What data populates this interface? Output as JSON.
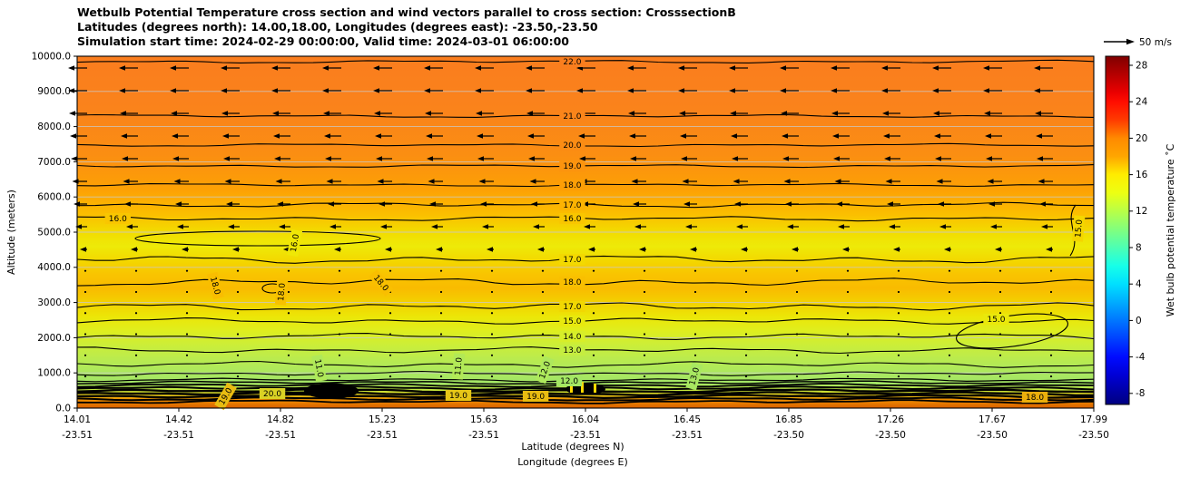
{
  "figure": {
    "title_lines": [
      "Wetbulb Potential Temperature cross section and wind vectors parallel to cross section: CrosssectionB",
      "Latitudes (degrees north): 14.00,18.00, Longitudes (degrees east): -23.50,-23.50",
      "Simulation start time: 2024-02-29 00:00:00, Valid time: 2024-03-01 06:00:00"
    ]
  },
  "chart_data": {
    "type": "filled-contour-cross-section",
    "title": "Wetbulb Potential Temperature cross section and wind vectors parallel to cross section: CrosssectionB",
    "info_lines": [
      "Latitudes (degrees north): 14.00,18.00, Longitudes (degrees east): -23.50,-23.50",
      "Simulation start time: 2024-02-29 00:00:00, Valid time: 2024-03-01 06:00:00"
    ],
    "x_axis": {
      "label_lat": "Latitude (degrees N)",
      "label_lon": "Longitude (degrees E)",
      "lat_ticks": [
        "14.01",
        "14.42",
        "14.82",
        "15.23",
        "15.63",
        "16.04",
        "16.45",
        "16.85",
        "17.26",
        "17.67",
        "17.99"
      ],
      "lon_ticks": [
        "-23.51",
        "-23.51",
        "-23.51",
        "-23.51",
        "-23.51",
        "-23.51",
        "-23.51",
        "-23.50",
        "-23.50",
        "-23.50",
        "-23.50"
      ]
    },
    "y_axis": {
      "label": "Altitude (meters)",
      "ticks": [
        "10000.0",
        "9000.0",
        "8000.0",
        "7000.0",
        "6000.0",
        "5000.0",
        "4000.0",
        "3000.0",
        "2000.0",
        "1000.0",
        "0.0"
      ],
      "range_m": [
        0,
        10000
      ]
    },
    "colorbar": {
      "label": "Wet bulb potential temperature ˚C",
      "ticks": [
        "28",
        "24",
        "20",
        "16",
        "12",
        "8",
        "4",
        "0",
        "-4",
        "-8"
      ],
      "colormap": "jet",
      "range": [
        -9,
        29
      ]
    },
    "wind": {
      "key_label": "50 m/s",
      "direction": "toward decreasing latitude (leftward arrows)",
      "arrow_rows": [
        {
          "altitude_m": 9665,
          "rel": 0.42
        },
        {
          "altitude_m": 9021,
          "rel": 0.42
        },
        {
          "altitude_m": 8376,
          "rel": 0.4
        },
        {
          "altitude_m": 7732,
          "rel": 0.38
        },
        {
          "altitude_m": 7088,
          "rel": 0.36
        },
        {
          "altitude_m": 6443,
          "rel": 0.33
        },
        {
          "altitude_m": 5799,
          "rel": 0.3
        },
        {
          "altitude_m": 5155,
          "rel": 0.26
        },
        {
          "altitude_m": 4510,
          "rel": 0.16
        }
      ],
      "dot_rows_altitude_m": [
        3900,
        3300,
        2700,
        2100,
        1500,
        900
      ]
    },
    "contour_unit": "degC",
    "contours": [
      {
        "level": "22.0",
        "altitude_m": 9845,
        "labels": [
          {
            "xf": 0.487
          }
        ]
      },
      {
        "level": "21.0",
        "altitude_m": 8299,
        "labels": [
          {
            "xf": 0.487
          }
        ]
      },
      {
        "level": "20.0",
        "altitude_m": 7474,
        "labels": [
          {
            "xf": 0.487
          }
        ]
      },
      {
        "level": "19.0",
        "altitude_m": 6881,
        "labels": [
          {
            "xf": 0.487
          }
        ]
      },
      {
        "level": "18.0",
        "altitude_m": 6340,
        "labels": [
          {
            "xf": 0.487
          }
        ]
      },
      {
        "level": "17.0",
        "altitude_m": 5773,
        "labels": [
          {
            "xf": 0.487
          }
        ]
      },
      {
        "level": "16.0",
        "altitude_m": 5387,
        "labels": [
          {
            "xf": 0.487
          },
          {
            "xf": 0.04
          },
          {
            "xf": 0.214,
            "rot": -80,
            "altitude_m": 4690
          }
        ]
      },
      {
        "level": "15.0",
        "altitude_m": 5103,
        "segment": "right-edge",
        "labels": [
          {
            "xf": 0.985,
            "rot": -85
          }
        ]
      },
      {
        "level": "17.0",
        "altitude_m": 4227,
        "labels": [
          {
            "xf": 0.487
          }
        ]
      },
      {
        "level": "18.0",
        "altitude_m": 3582,
        "labels": [
          {
            "xf": 0.487
          },
          {
            "xf": 0.136,
            "rot": 75,
            "altitude_m": 3479
          },
          {
            "xf": 0.201,
            "rot": -85,
            "altitude_m": 3299
          },
          {
            "xf": 0.299,
            "rot": 50,
            "altitude_m": 3556
          }
        ]
      },
      {
        "level": "17.0",
        "altitude_m": 2887,
        "labels": [
          {
            "xf": 0.487
          }
        ]
      },
      {
        "level": "15.0",
        "altitude_m": 2474,
        "labels": [
          {
            "xf": 0.487
          },
          {
            "xf": 0.904,
            "altitude_m": 2525
          }
        ]
      },
      {
        "level": "14.0",
        "altitude_m": 2036,
        "labels": [
          {
            "xf": 0.487
          }
        ]
      },
      {
        "level": "13.0",
        "altitude_m": 1649,
        "labels": [
          {
            "xf": 0.487
          },
          {
            "xf": 0.607,
            "rot": -75,
            "altitude_m": 902
          }
        ]
      },
      {
        "level": "12.0",
        "altitude_m": 1237,
        "labels": [
          {
            "xf": 0.46,
            "rot": -70,
            "altitude_m": 1082
          },
          {
            "xf": 0.484,
            "altitude_m": 773
          }
        ]
      },
      {
        "level": "11.0",
        "altitude_m": 979,
        "labels": [
          {
            "xf": 0.238,
            "rot": 80,
            "altitude_m": 1134
          },
          {
            "xf": 0.375,
            "rot": -85,
            "altitude_m": 1185
          }
        ]
      }
    ],
    "surface_band": {
      "description": "tightly packed contours in lowest ~800 m",
      "altitude_m_lines": [
        799,
        722,
        644,
        567,
        490,
        412,
        335,
        257,
        180
      ],
      "labels": [
        {
          "level": "19.0",
          "xf": 0.146,
          "altitude_m": 335,
          "rot": -60
        },
        {
          "level": "20.0",
          "xf": 0.192,
          "altitude_m": 412
        },
        {
          "level": "19.0",
          "xf": 0.375,
          "altitude_m": 361
        },
        {
          "level": "19.0",
          "xf": 0.451,
          "altitude_m": 335
        },
        {
          "level": "18.0",
          "xf": 0.942,
          "altitude_m": 309
        }
      ]
    }
  }
}
